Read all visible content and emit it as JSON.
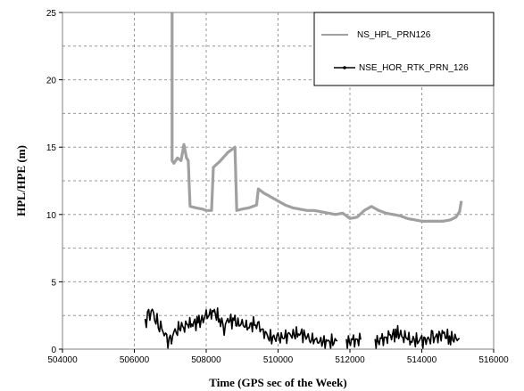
{
  "chart_data": {
    "type": "line",
    "title": "",
    "xlabel": "Time (GPS sec of the Week)",
    "ylabel": "HPL/HPE (m)",
    "xlim": [
      504000,
      516000
    ],
    "ylim": [
      0,
      25
    ],
    "xticks": [
      "504000",
      "506000",
      "508000",
      "510000",
      "512000",
      "514000",
      "516000"
    ],
    "yticks": [
      "0",
      "5",
      "10",
      "15",
      "20",
      "25"
    ],
    "grid": true,
    "legend_position": "top-right",
    "series": [
      {
        "name": "NS_HPL_PRN126",
        "color": "#a0a0a0",
        "style": "thick-line",
        "segments": [
          [
            [
              507050,
              25.0
            ],
            [
              507050,
              14.0
            ],
            [
              507100,
              13.8
            ],
            [
              507200,
              14.2
            ],
            [
              507300,
              14.0
            ],
            [
              507380,
              15.2
            ],
            [
              507450,
              14.2
            ],
            [
              507500,
              14.0
            ],
            [
              507550,
              10.6
            ],
            [
              507700,
              10.5
            ],
            [
              507900,
              10.4
            ],
            [
              508000,
              10.3
            ],
            [
              508150,
              10.3
            ],
            [
              508200,
              13.5
            ],
            [
              508400,
              14.0
            ],
            [
              508600,
              14.6
            ],
            [
              508800,
              15.0
            ],
            [
              508850,
              10.3
            ],
            [
              509000,
              10.4
            ],
            [
              509200,
              10.5
            ],
            [
              509400,
              10.7
            ],
            [
              509450,
              11.9
            ],
            [
              509600,
              11.6
            ],
            [
              509800,
              11.3
            ],
            [
              510000,
              11.0
            ],
            [
              510200,
              10.7
            ],
            [
              510400,
              10.5
            ],
            [
              510600,
              10.4
            ],
            [
              510800,
              10.3
            ],
            [
              511000,
              10.3
            ],
            [
              511200,
              10.2
            ],
            [
              511400,
              10.1
            ],
            [
              511600,
              10.0
            ],
            [
              511800,
              10.1
            ],
            [
              512000,
              9.7
            ],
            [
              512200,
              9.8
            ],
            [
              512400,
              10.3
            ],
            [
              512600,
              10.6
            ],
            [
              512800,
              10.3
            ],
            [
              513000,
              10.1
            ],
            [
              513200,
              10.0
            ],
            [
              513400,
              9.9
            ],
            [
              513600,
              9.7
            ],
            [
              513800,
              9.6
            ],
            [
              514000,
              9.5
            ],
            [
              514200,
              9.5
            ],
            [
              514400,
              9.5
            ],
            [
              514600,
              9.5
            ],
            [
              514800,
              9.6
            ],
            [
              514950,
              9.8
            ],
            [
              515050,
              10.2
            ],
            [
              515100,
              11.0
            ]
          ]
        ]
      },
      {
        "name": "NSE_HOR_RTK_PRN_126",
        "color": "#000000",
        "style": "noisy-line",
        "segments": [
          [
            [
              506300,
              2.0
            ],
            [
              506400,
              2.5
            ],
            [
              506500,
              2.8
            ],
            [
              506600,
              2.2
            ],
            [
              506700,
              1.8
            ],
            [
              506800,
              1.4
            ],
            [
              506900,
              0.7
            ],
            [
              507000,
              0.5
            ],
            [
              507100,
              1.2
            ],
            [
              507200,
              1.5
            ],
            [
              507400,
              1.8
            ],
            [
              507600,
              1.9
            ],
            [
              507800,
              2.0
            ],
            [
              508000,
              2.4
            ],
            [
              508200,
              2.8
            ],
            [
              508400,
              2.2
            ],
            [
              508500,
              1.5
            ],
            [
              508600,
              2.2
            ],
            [
              508800,
              2.0
            ],
            [
              509000,
              1.8
            ],
            [
              509200,
              1.7
            ],
            [
              509400,
              2.0
            ],
            [
              509500,
              1.6
            ],
            [
              509700,
              0.9
            ],
            [
              510000,
              0.8
            ],
            [
              510300,
              1.0
            ],
            [
              510600,
              1.2
            ],
            [
              510900,
              0.8
            ],
            [
              511100,
              0.6
            ],
            [
              511400,
              0.5
            ],
            [
              511650,
              0.6
            ]
          ],
          [
            [
              511900,
              0.5
            ],
            [
              512100,
              0.6
            ],
            [
              512300,
              0.7
            ]
          ],
          [
            [
              512700,
              0.5
            ],
            [
              512900,
              0.7
            ],
            [
              513100,
              0.9
            ],
            [
              513300,
              1.2
            ],
            [
              513500,
              1.0
            ],
            [
              513700,
              0.7
            ],
            [
              514000,
              0.6
            ],
            [
              514300,
              0.8
            ],
            [
              514600,
              1.1
            ],
            [
              514800,
              0.8
            ],
            [
              515050,
              0.8
            ]
          ]
        ]
      }
    ]
  }
}
